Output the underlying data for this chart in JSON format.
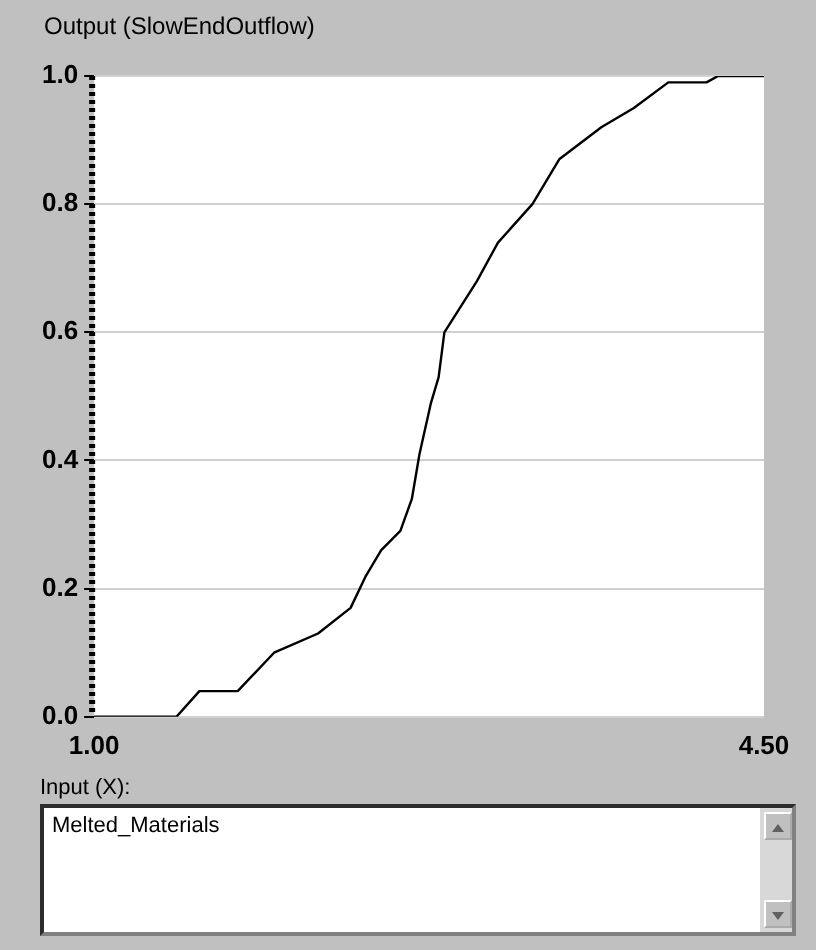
{
  "chart_data": {
    "type": "line",
    "title": "Output (SlowEndOutflow)",
    "xlabel": "Input (X):",
    "annotations": [
      "Melted_Materials"
    ],
    "series": [
      {
        "color": "#000000",
        "x": [
          1.0,
          1.43,
          1.55,
          1.75,
          1.94,
          2.17,
          2.34,
          2.42,
          2.5,
          2.6,
          2.66,
          2.7,
          2.76,
          2.8,
          2.83,
          3.0,
          3.11,
          3.29,
          3.43,
          3.65,
          3.82,
          4.0,
          4.2,
          4.26,
          4.5
        ],
        "values": [
          0,
          0,
          0.04,
          0.04,
          0.1,
          0.13,
          0.17,
          0.22,
          0.26,
          0.29,
          0.34,
          0.41,
          0.49,
          0.53,
          0.6,
          0.68,
          0.74,
          0.8,
          0.87,
          0.92,
          0.95,
          0.99,
          0.99,
          1.0,
          1.0
        ]
      }
    ],
    "xlim": [
      1.0,
      4.5
    ],
    "xticks": [
      {
        "value": 1.0,
        "label": "1.00"
      },
      {
        "value": 4.5,
        "label": "4.50"
      }
    ],
    "ylim": [
      0,
      1
    ],
    "yticks": [
      {
        "value": 0,
        "label": "0.0"
      },
      {
        "value": 0.2,
        "label": "0.2"
      },
      {
        "value": 0.4,
        "label": "0.4"
      },
      {
        "value": 0.6,
        "label": "0.6"
      },
      {
        "value": 0.8,
        "label": "0.8"
      },
      {
        "value": 1,
        "label": "1.0"
      }
    ],
    "grid": "y",
    "marker": "none",
    "line_style": "solid",
    "legend": false
  }
}
